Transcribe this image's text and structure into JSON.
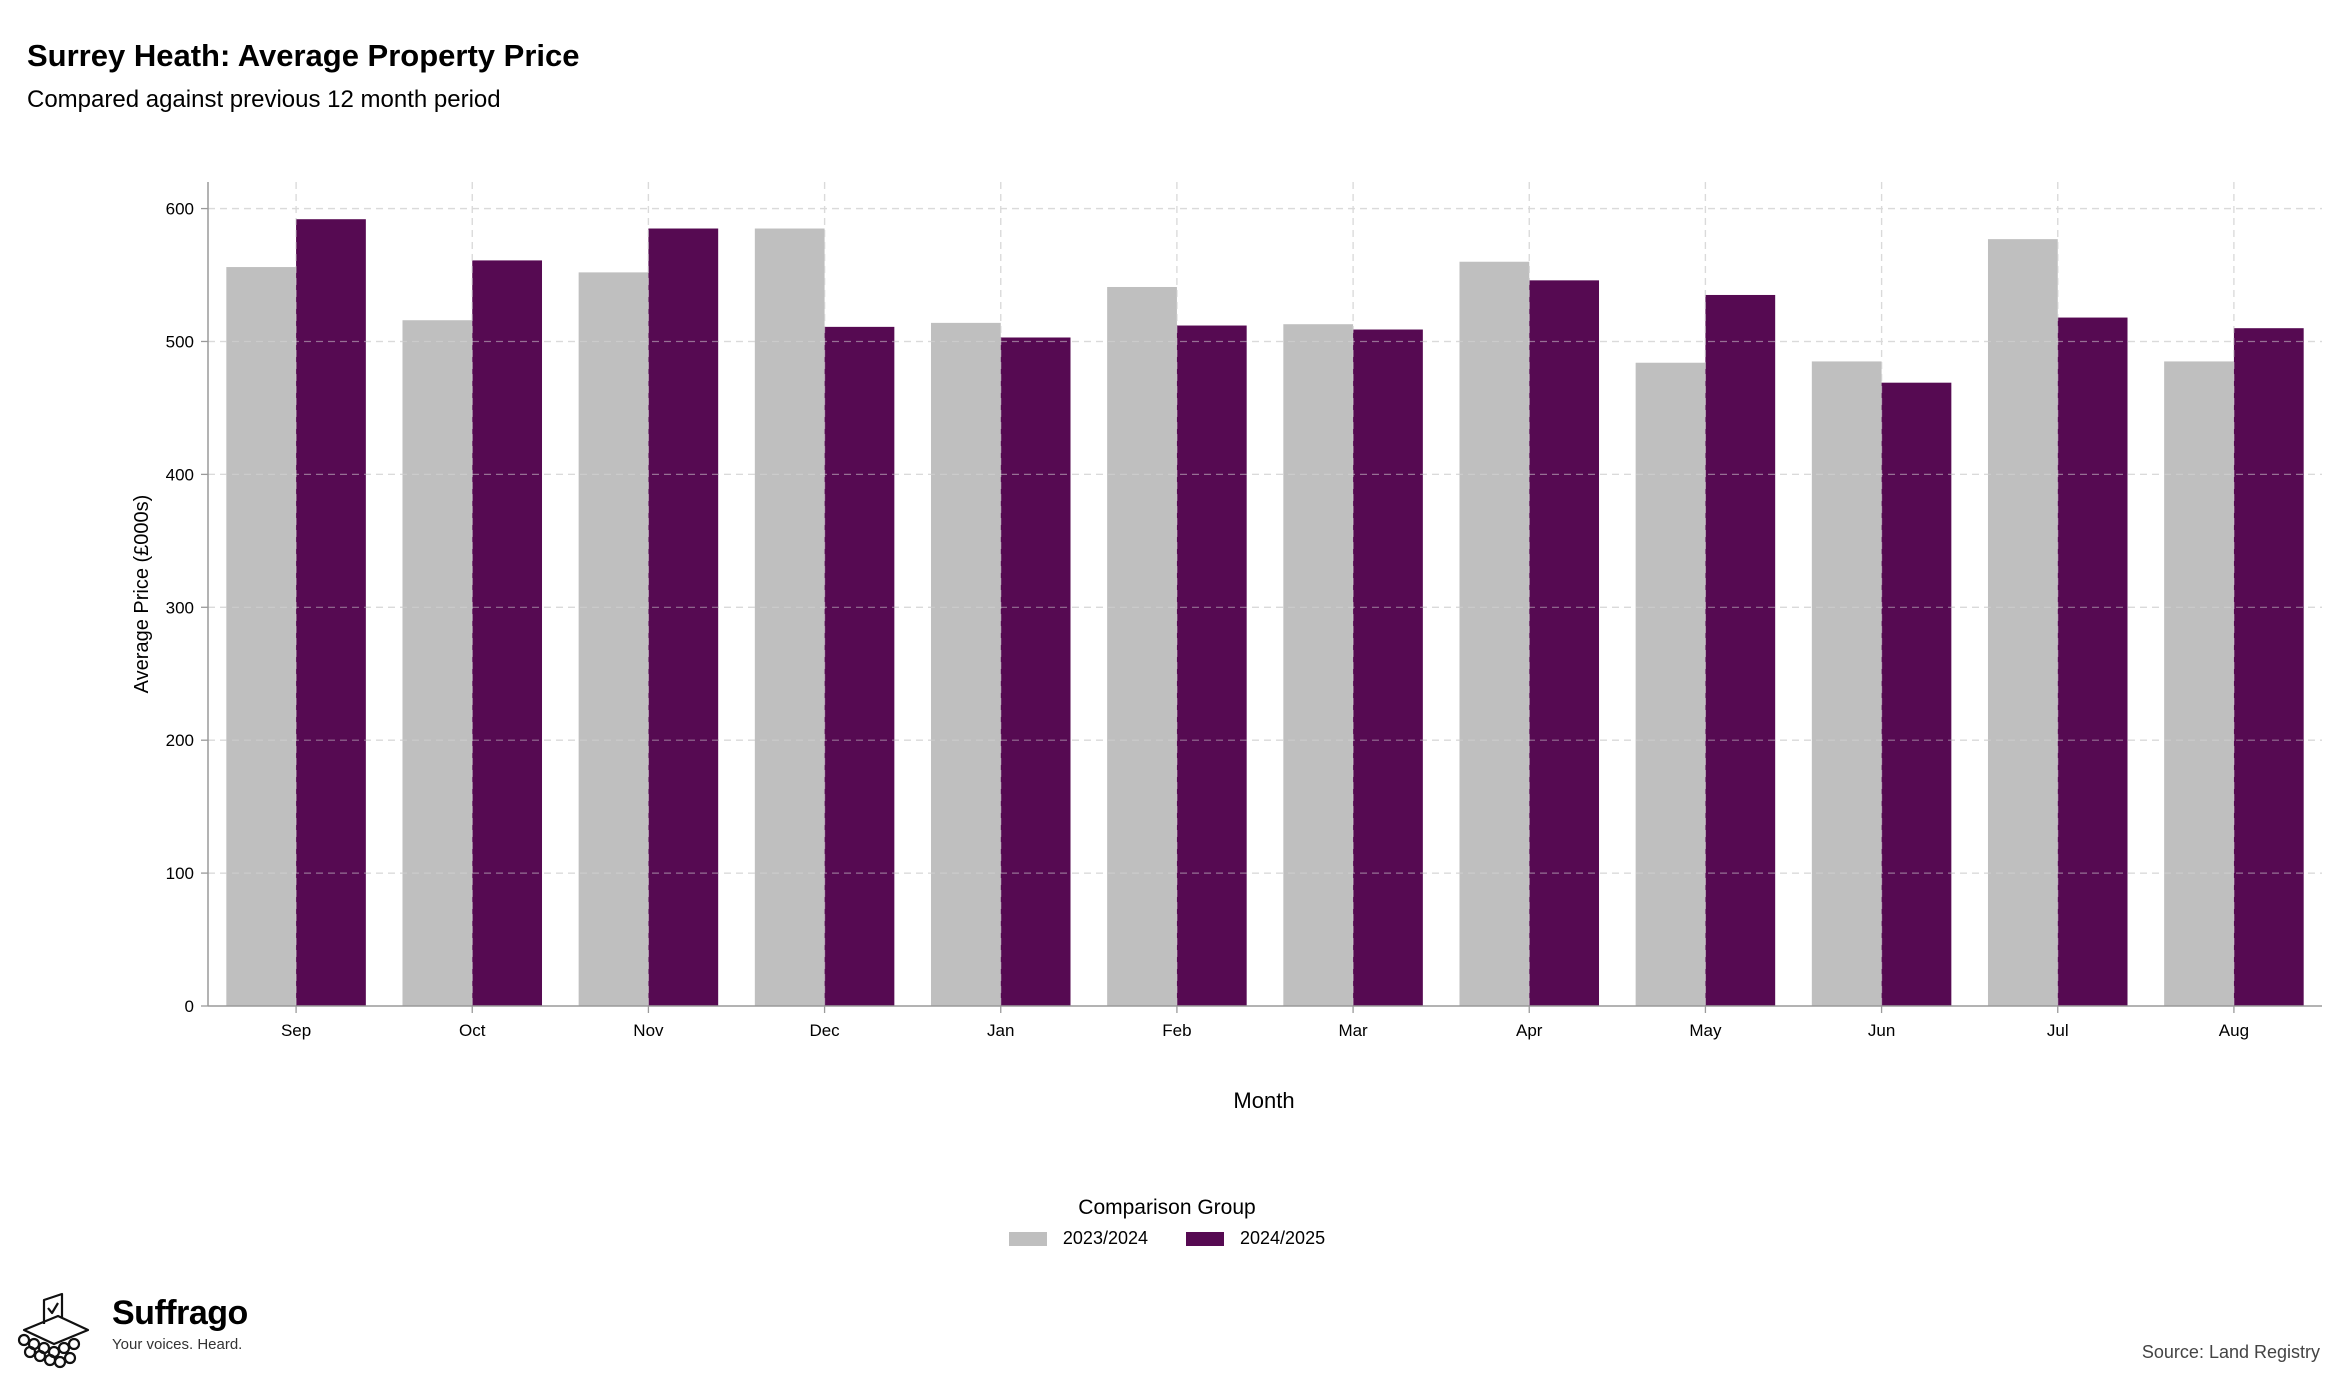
{
  "chart_data": {
    "type": "bar",
    "title": "Surrey Heath: Average Property Price",
    "subtitle": "Compared against previous 12 month period",
    "xlabel": "Month",
    "ylabel": "Average Price (£000s)",
    "ylim": [
      0,
      620
    ],
    "yticks": [
      "0",
      "100",
      "200",
      "300",
      "400",
      "500",
      "600"
    ],
    "grid": true,
    "legend_title": "Comparison Group",
    "legend_position": "bottom",
    "categories": [
      "Sep",
      "Oct",
      "Nov",
      "Dec",
      "Jan",
      "Feb",
      "Mar",
      "Apr",
      "May",
      "Jun",
      "Jul",
      "Aug"
    ],
    "series": [
      {
        "name": "2023/2024",
        "color": "#bfbfbf",
        "values": [
          556,
          516,
          552,
          585,
          514,
          541,
          513,
          560,
          484,
          485,
          577,
          485
        ]
      },
      {
        "name": "2024/2025",
        "color": "#560a52",
        "values": [
          592,
          561,
          585,
          511,
          503,
          512,
          509,
          546,
          535,
          469,
          518,
          510
        ]
      }
    ]
  },
  "brand": {
    "name": "Suffrago",
    "tagline": "Your voices. Heard."
  },
  "source": "Source: Land Registry"
}
